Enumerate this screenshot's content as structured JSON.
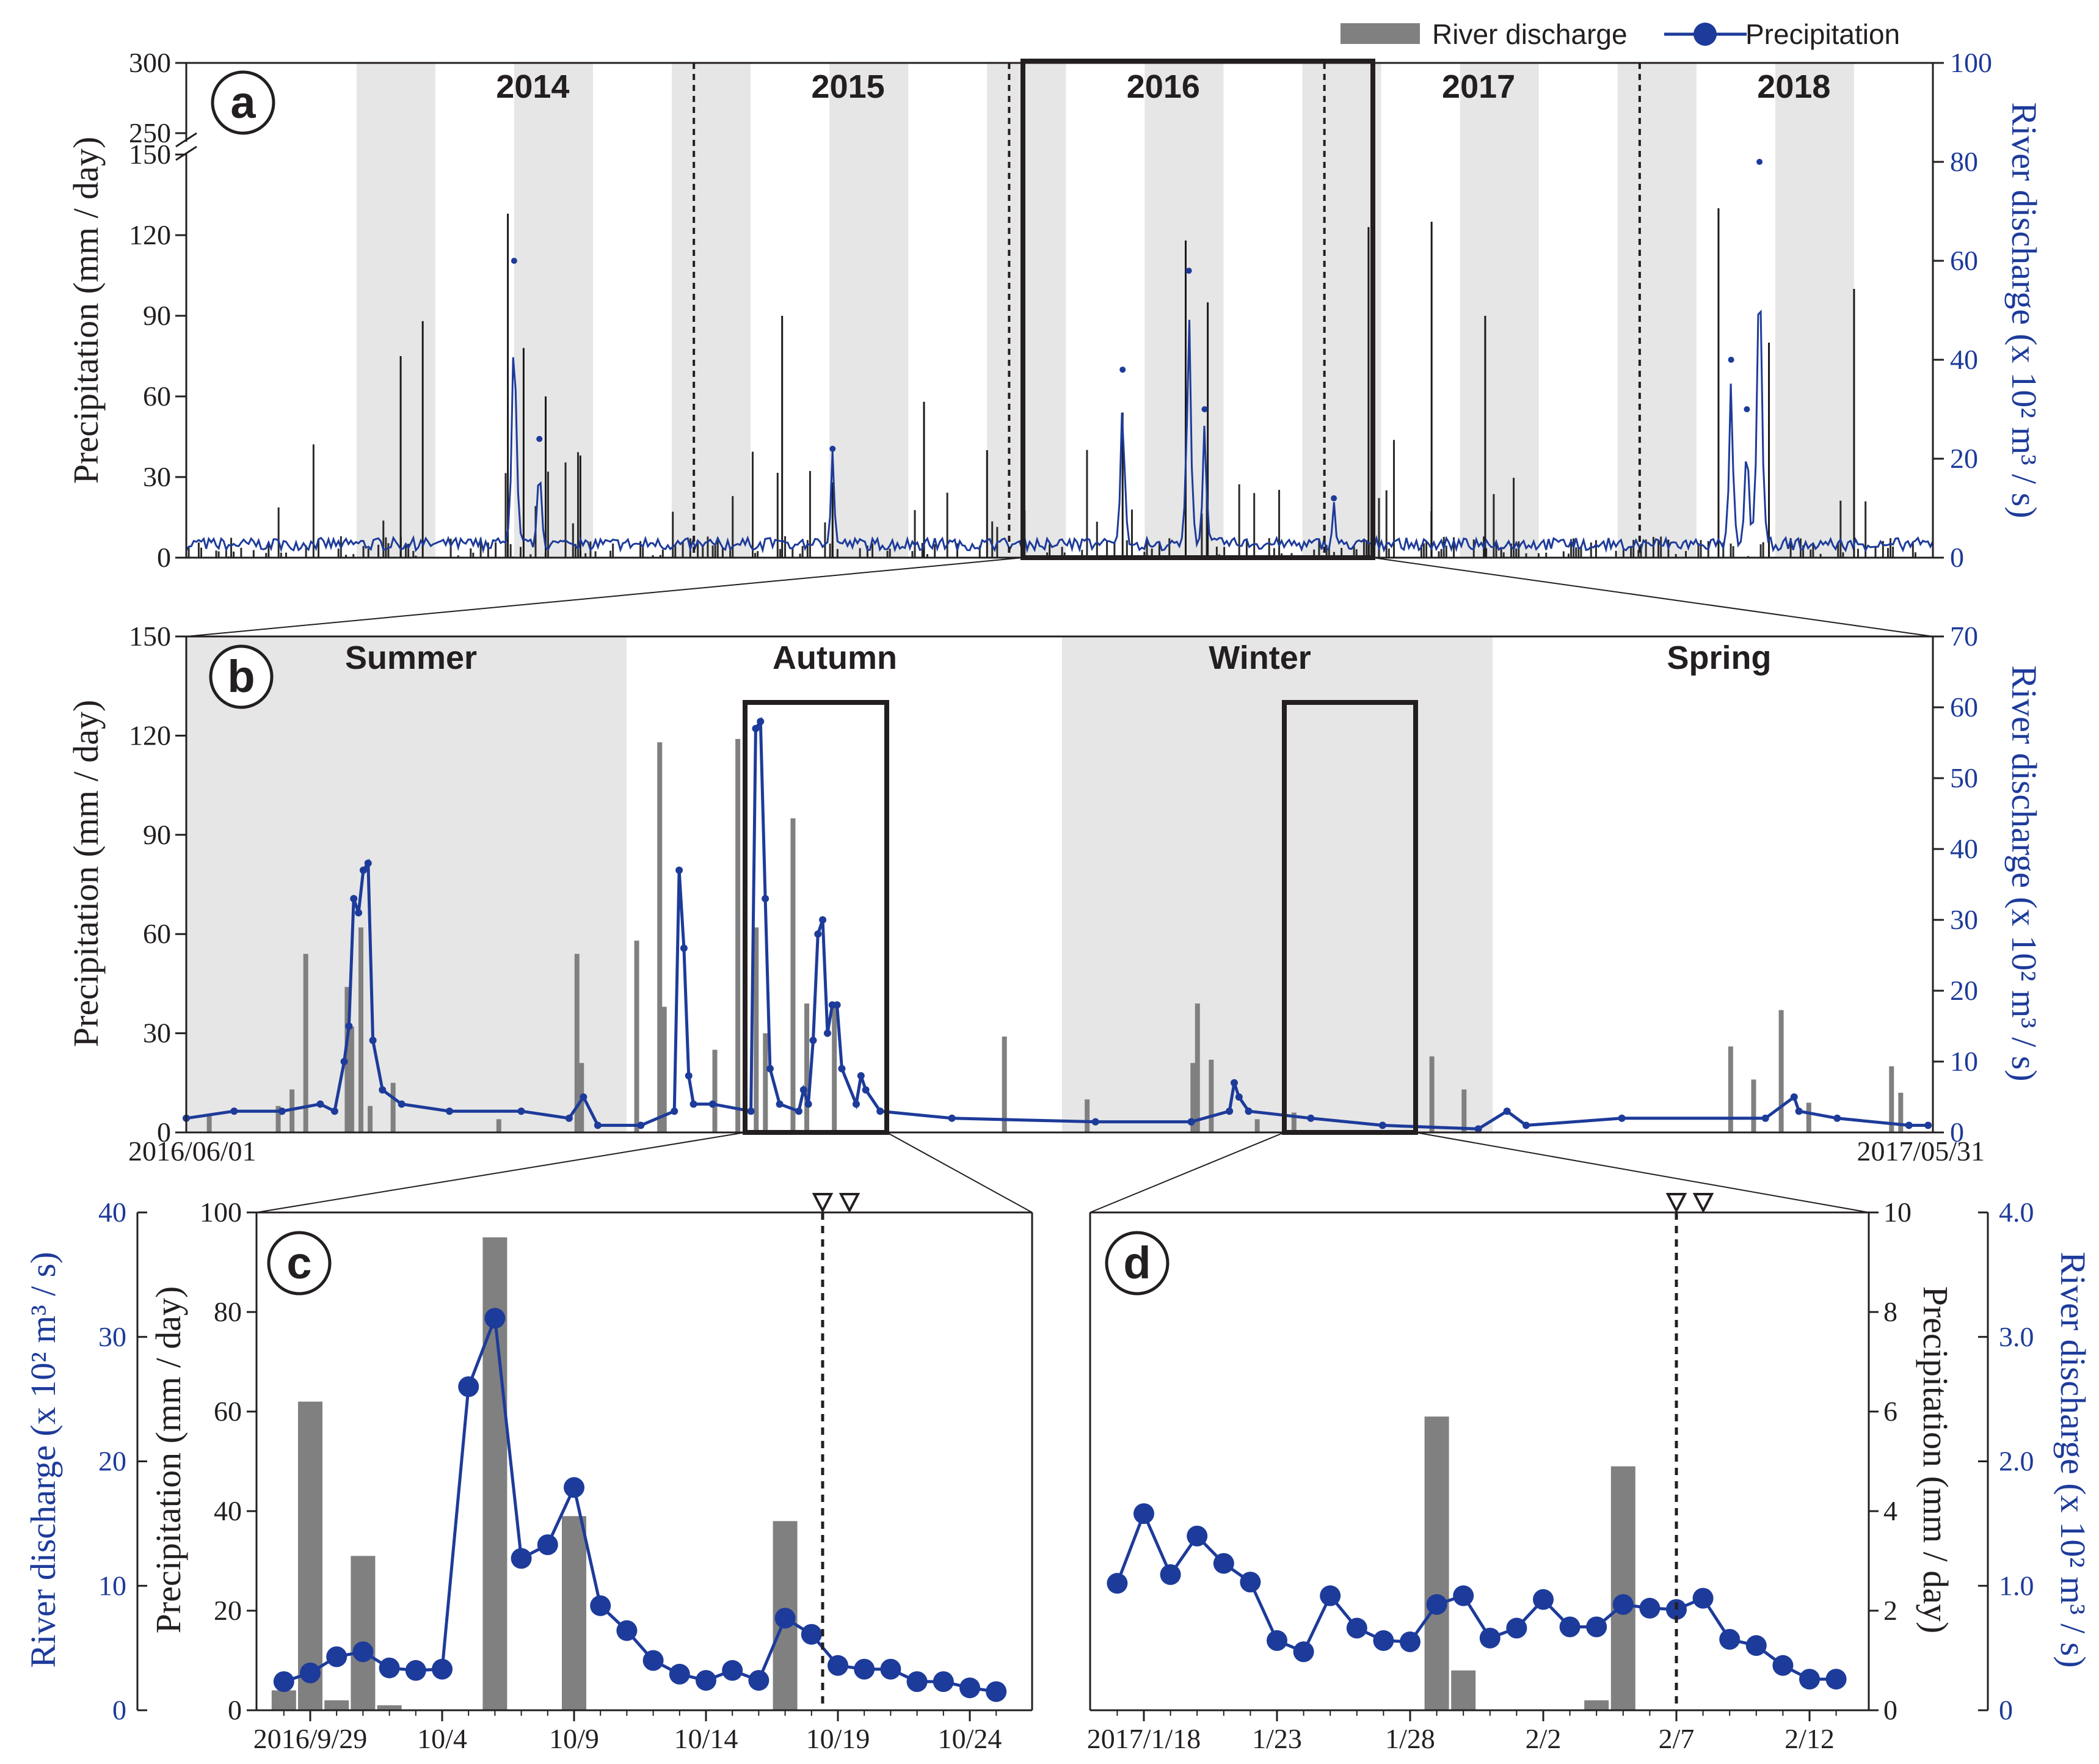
{
  "legend": {
    "discharge": "River discharge",
    "precipitation": "Precipitation"
  },
  "colors": {
    "line": "#1d3b9a",
    "bar": "#808080",
    "shade": "#e6e6e6",
    "frame": "#231f20"
  },
  "chart_data": [
    {
      "id": "a",
      "panel_label": "a",
      "type": "bar+line",
      "title": "",
      "ylabel_left": "Precipitation (mm / day)",
      "ylabel_right": "River discharge (x 10² m³ / s)",
      "left_ticks": [
        "0",
        "30",
        "60",
        "90",
        "120",
        "150",
        "250",
        "300"
      ],
      "right_ticks": [
        "0",
        "20",
        "40",
        "60",
        "80",
        "100"
      ],
      "ylim_left": [
        0,
        300
      ],
      "ylim_right": [
        0,
        100
      ],
      "years": [
        "2014",
        "2015",
        "2016",
        "2017",
        "2018"
      ],
      "precip_peaks": [
        {
          "t": 2014.4,
          "v": 128
        },
        {
          "t": 2014.45,
          "v": 78
        },
        {
          "t": 2014.52,
          "v": 60
        },
        {
          "t": 2014.63,
          "v": 38
        },
        {
          "t": 2014.13,
          "v": 88
        },
        {
          "t": 2014.06,
          "v": 75
        },
        {
          "t": 2015.27,
          "v": 90
        },
        {
          "t": 2015.43,
          "v": 28
        },
        {
          "t": 2015.72,
          "v": 58
        },
        {
          "t": 2015.92,
          "v": 40
        },
        {
          "t": 2016.55,
          "v": 118
        },
        {
          "t": 2016.62,
          "v": 95
        },
        {
          "t": 2016.35,
          "v": 54
        },
        {
          "t": 2017.13,
          "v": 123
        },
        {
          "t": 2017.33,
          "v": 125
        },
        {
          "t": 2017.5,
          "v": 90
        },
        {
          "t": 2018.24,
          "v": 130
        },
        {
          "t": 2018.4,
          "v": 80
        },
        {
          "t": 2018.67,
          "v": 100
        }
      ],
      "discharge_peaks": [
        {
          "t": 2014.42,
          "v": 60
        },
        {
          "t": 2014.5,
          "v": 24
        },
        {
          "t": 2015.43,
          "v": 22
        },
        {
          "t": 2016.35,
          "v": 38
        },
        {
          "t": 2016.56,
          "v": 58
        },
        {
          "t": 2016.61,
          "v": 30
        },
        {
          "t": 2017.02,
          "v": 12
        },
        {
          "t": 2018.28,
          "v": 40
        },
        {
          "t": 2018.37,
          "v": 80
        },
        {
          "t": 2018.33,
          "v": 30
        }
      ]
    },
    {
      "id": "b",
      "panel_label": "b",
      "type": "bar+line",
      "ylabel_left": "Precipitation (mm / day)",
      "ylabel_right": "River discharge (x 10² m³ / s)",
      "left_ticks": [
        "0",
        "30",
        "60",
        "90",
        "120",
        "150"
      ],
      "right_ticks": [
        "0",
        "10",
        "20",
        "30",
        "40",
        "50",
        "60",
        "70"
      ],
      "ylim_left": [
        0,
        150
      ],
      "ylim_right": [
        0,
        70
      ],
      "x_start": "2016/06/01",
      "x_end": "2017/05/31",
      "seasons": [
        "Summer",
        "Autumn",
        "Winter",
        "Spring"
      ],
      "precip_bars": [
        {
          "d": 5,
          "v": 5
        },
        {
          "d": 20,
          "v": 8
        },
        {
          "d": 23,
          "v": 13
        },
        {
          "d": 26,
          "v": 54
        },
        {
          "d": 35,
          "v": 44
        },
        {
          "d": 36,
          "v": 32
        },
        {
          "d": 38,
          "v": 62
        },
        {
          "d": 40,
          "v": 8
        },
        {
          "d": 45,
          "v": 15
        },
        {
          "d": 68,
          "v": 4
        },
        {
          "d": 85,
          "v": 54
        },
        {
          "d": 86,
          "v": 21
        },
        {
          "d": 98,
          "v": 58
        },
        {
          "d": 103,
          "v": 118
        },
        {
          "d": 104,
          "v": 38
        },
        {
          "d": 115,
          "v": 25
        },
        {
          "d": 120,
          "v": 119
        },
        {
          "d": 124,
          "v": 62
        },
        {
          "d": 126,
          "v": 30
        },
        {
          "d": 132,
          "v": 95
        },
        {
          "d": 135,
          "v": 39
        },
        {
          "d": 141,
          "v": 38
        },
        {
          "d": 178,
          "v": 29
        },
        {
          "d": 196,
          "v": 10
        },
        {
          "d": 219,
          "v": 21
        },
        {
          "d": 220,
          "v": 39
        },
        {
          "d": 223,
          "v": 22
        },
        {
          "d": 233,
          "v": 4
        },
        {
          "d": 241,
          "v": 6
        },
        {
          "d": 271,
          "v": 23
        },
        {
          "d": 278,
          "v": 13
        },
        {
          "d": 336,
          "v": 26
        },
        {
          "d": 341,
          "v": 16
        },
        {
          "d": 347,
          "v": 37
        },
        {
          "d": 353,
          "v": 9
        },
        {
          "d": 371,
          "v": 20
        },
        {
          "d": 373,
          "v": 12
        }
      ],
      "discharge_points": [
        {
          "d": 0,
          "v": 2
        },
        {
          "d": 10,
          "v": 3
        },
        {
          "d": 20,
          "v": 3
        },
        {
          "d": 28,
          "v": 4
        },
        {
          "d": 31,
          "v": 3
        },
        {
          "d": 33,
          "v": 10
        },
        {
          "d": 34,
          "v": 15
        },
        {
          "d": 35,
          "v": 33
        },
        {
          "d": 36,
          "v": 31
        },
        {
          "d": 37,
          "v": 37
        },
        {
          "d": 38,
          "v": 38
        },
        {
          "d": 39,
          "v": 13
        },
        {
          "d": 41,
          "v": 6
        },
        {
          "d": 45,
          "v": 4
        },
        {
          "d": 55,
          "v": 3
        },
        {
          "d": 70,
          "v": 3
        },
        {
          "d": 80,
          "v": 2
        },
        {
          "d": 83,
          "v": 5
        },
        {
          "d": 86,
          "v": 1
        },
        {
          "d": 95,
          "v": 1
        },
        {
          "d": 102,
          "v": 3
        },
        {
          "d": 103,
          "v": 37
        },
        {
          "d": 104,
          "v": 26
        },
        {
          "d": 105,
          "v": 8
        },
        {
          "d": 106,
          "v": 4
        },
        {
          "d": 110,
          "v": 4
        },
        {
          "d": 118,
          "v": 3
        },
        {
          "d": 119,
          "v": 57
        },
        {
          "d": 120,
          "v": 58
        },
        {
          "d": 121,
          "v": 33
        },
        {
          "d": 122,
          "v": 9
        },
        {
          "d": 124,
          "v": 4
        },
        {
          "d": 128,
          "v": 3
        },
        {
          "d": 129,
          "v": 6
        },
        {
          "d": 130,
          "v": 4
        },
        {
          "d": 131,
          "v": 13
        },
        {
          "d": 132,
          "v": 28
        },
        {
          "d": 133,
          "v": 30
        },
        {
          "d": 134,
          "v": 14
        },
        {
          "d": 135,
          "v": 18
        },
        {
          "d": 136,
          "v": 18
        },
        {
          "d": 137,
          "v": 9
        },
        {
          "d": 140,
          "v": 4
        },
        {
          "d": 141,
          "v": 8
        },
        {
          "d": 142,
          "v": 6
        },
        {
          "d": 145,
          "v": 3
        },
        {
          "d": 160,
          "v": 2
        },
        {
          "d": 190,
          "v": 1.5
        },
        {
          "d": 210,
          "v": 1.5
        },
        {
          "d": 218,
          "v": 3
        },
        {
          "d": 219,
          "v": 7
        },
        {
          "d": 220,
          "v": 5
        },
        {
          "d": 222,
          "v": 3
        },
        {
          "d": 235,
          "v": 2
        },
        {
          "d": 250,
          "v": 1
        },
        {
          "d": 270,
          "v": 0.5
        },
        {
          "d": 276,
          "v": 3
        },
        {
          "d": 280,
          "v": 1
        },
        {
          "d": 300,
          "v": 2
        },
        {
          "d": 330,
          "v": 2
        },
        {
          "d": 336,
          "v": 5
        },
        {
          "d": 337,
          "v": 3
        },
        {
          "d": 345,
          "v": 2
        },
        {
          "d": 360,
          "v": 1
        },
        {
          "d": 364,
          "v": 1
        }
      ]
    },
    {
      "id": "c",
      "panel_label": "c",
      "type": "bar+line",
      "ylabel_left": "River discharge (x 10² m³ / s)",
      "ylabel_right": "Precipitation (mm / day)",
      "discharge_ticks": [
        "0",
        "10",
        "20",
        "30",
        "40"
      ],
      "precip_ticks": [
        "0",
        "20",
        "40",
        "60",
        "80",
        "100"
      ],
      "ylim_discharge": [
        0,
        40
      ],
      "ylim_precip": [
        0,
        100
      ],
      "x_ticks": [
        "2016/9/29",
        "10/4",
        "10/9",
        "10/14",
        "10/19",
        "10/24"
      ],
      "x_tick_days": [
        0,
        5,
        10,
        15,
        20,
        25
      ],
      "marker_day": 20,
      "precip_bars": [
        {
          "d": -1,
          "v": 4
        },
        {
          "d": 0,
          "v": 62
        },
        {
          "d": 1,
          "v": 2
        },
        {
          "d": 2,
          "v": 31
        },
        {
          "d": 3,
          "v": 1
        },
        {
          "d": 7,
          "v": 95
        },
        {
          "d": 10,
          "v": 39
        },
        {
          "d": 18,
          "v": 38
        }
      ],
      "discharge_points": [
        {
          "d": -1,
          "v": 2.3
        },
        {
          "d": 0,
          "v": 3.0
        },
        {
          "d": 1,
          "v": 4.3
        },
        {
          "d": 2,
          "v": 4.7
        },
        {
          "d": 3,
          "v": 3.4
        },
        {
          "d": 4,
          "v": 3.2
        },
        {
          "d": 5,
          "v": 3.3
        },
        {
          "d": 6,
          "v": 26.0
        },
        {
          "d": 7,
          "v": 31.5
        },
        {
          "d": 8,
          "v": 12.2
        },
        {
          "d": 9,
          "v": 13.3
        },
        {
          "d": 10,
          "v": 17.9
        },
        {
          "d": 11,
          "v": 8.4
        },
        {
          "d": 12,
          "v": 6.4
        },
        {
          "d": 13,
          "v": 4.0
        },
        {
          "d": 14,
          "v": 2.9
        },
        {
          "d": 15,
          "v": 2.4
        },
        {
          "d": 16,
          "v": 3.2
        },
        {
          "d": 17,
          "v": 2.4
        },
        {
          "d": 18,
          "v": 7.4
        },
        {
          "d": 19,
          "v": 6.1
        },
        {
          "d": 20,
          "v": 3.6
        },
        {
          "d": 21,
          "v": 3.3
        },
        {
          "d": 22,
          "v": 3.3
        },
        {
          "d": 23,
          "v": 2.3
        },
        {
          "d": 24,
          "v": 2.3
        },
        {
          "d": 25,
          "v": 1.8
        },
        {
          "d": 26,
          "v": 1.5
        }
      ]
    },
    {
      "id": "d",
      "panel_label": "d",
      "type": "bar+line",
      "ylabel_left": "Precipitation (mm / day)",
      "ylabel_right": "River discharge (x 10² m³ / s)",
      "precip_ticks": [
        "0",
        "2",
        "4",
        "6",
        "8",
        "10"
      ],
      "discharge_ticks": [
        "0",
        "1.0",
        "2.0",
        "3.0",
        "4.0"
      ],
      "ylim_precip": [
        0,
        10
      ],
      "ylim_discharge": [
        0,
        4
      ],
      "x_ticks": [
        "2017/1/18",
        "1/23",
        "1/28",
        "2/2",
        "2/7",
        "2/12"
      ],
      "x_tick_days": [
        0,
        5,
        10,
        15,
        20,
        25
      ],
      "marker_day": 20,
      "precip_bars": [
        {
          "d": 11,
          "v": 5.9
        },
        {
          "d": 12,
          "v": 0.8
        },
        {
          "d": 17,
          "v": 0.2
        },
        {
          "d": 18,
          "v": 4.9
        }
      ],
      "discharge_points": [
        {
          "d": -1,
          "v": 1.02
        },
        {
          "d": 0,
          "v": 1.58
        },
        {
          "d": 1,
          "v": 1.09
        },
        {
          "d": 2,
          "v": 1.4
        },
        {
          "d": 3,
          "v": 1.18
        },
        {
          "d": 4,
          "v": 1.03
        },
        {
          "d": 5,
          "v": 0.56
        },
        {
          "d": 6,
          "v": 0.47
        },
        {
          "d": 7,
          "v": 0.92
        },
        {
          "d": 8,
          "v": 0.66
        },
        {
          "d": 9,
          "v": 0.56
        },
        {
          "d": 10,
          "v": 0.55
        },
        {
          "d": 11,
          "v": 0.85
        },
        {
          "d": 12,
          "v": 0.92
        },
        {
          "d": 13,
          "v": 0.58
        },
        {
          "d": 14,
          "v": 0.66
        },
        {
          "d": 15,
          "v": 0.89
        },
        {
          "d": 16,
          "v": 0.67
        },
        {
          "d": 17,
          "v": 0.67
        },
        {
          "d": 18,
          "v": 0.85
        },
        {
          "d": 19,
          "v": 0.82
        },
        {
          "d": 20,
          "v": 0.81
        },
        {
          "d": 21,
          "v": 0.9
        },
        {
          "d": 22,
          "v": 0.57
        },
        {
          "d": 23,
          "v": 0.52
        },
        {
          "d": 24,
          "v": 0.36
        },
        {
          "d": 25,
          "v": 0.25
        },
        {
          "d": 26,
          "v": 0.25
        }
      ]
    }
  ]
}
